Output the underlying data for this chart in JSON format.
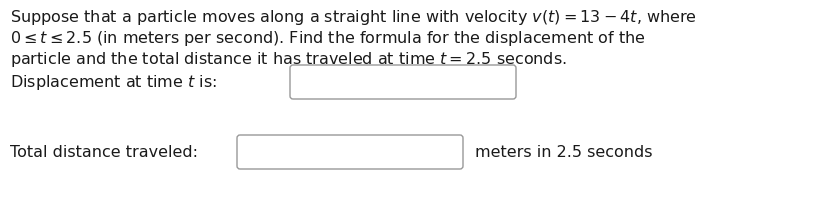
{
  "background_color": "#ffffff",
  "text_color": "#1a1a1a",
  "line1": "Suppose that a particle moves along a straight line with velocity $v(t) = 13 - 4t$, where",
  "line2": "$0 \\leq t \\leq 2.5$ (in meters per second). Find the formula for the displacement of the",
  "line3": "particle and the total distance it has traveled at time $t = 2.5$ seconds.",
  "label1": "Displacement at time $t$ is:",
  "label2": "Total distance traveled:",
  "suffix": "meters in 2.5 seconds",
  "font_size": 11.5,
  "fig_width": 8.17,
  "fig_height": 2.2,
  "dpi": 100
}
